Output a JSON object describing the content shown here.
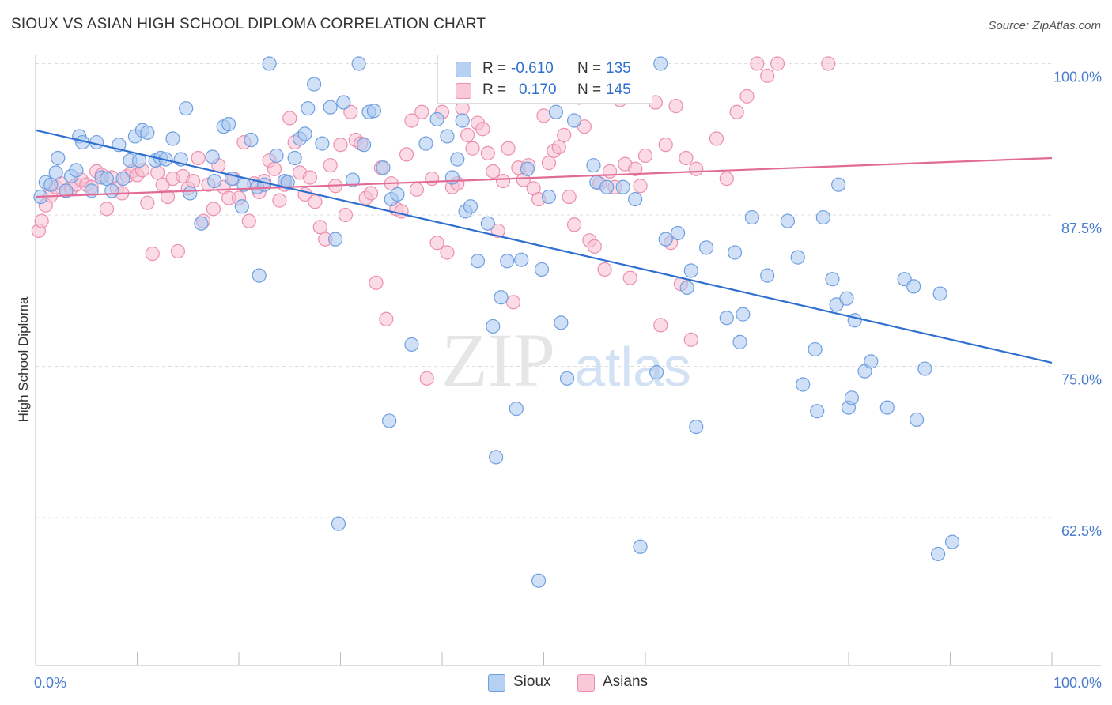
{
  "title": "SIOUX VS ASIAN HIGH SCHOOL DIPLOMA CORRELATION CHART",
  "source": "Source: ZipAtlas.com",
  "watermark": {
    "zip": "ZIP",
    "atlas": "atlas"
  },
  "legend": {
    "r_label": "R =",
    "n_label": "N =",
    "sioux": {
      "r": "-0.610",
      "n": "135"
    },
    "asians": {
      "r": "0.170",
      "n": "145"
    }
  },
  "colors": {
    "sioux_fill": "#a9c8f0",
    "sioux_stroke": "#6f9fe0",
    "sioux_line": "#2f6fcf",
    "asians_fill": "#f7c0d2",
    "asians_stroke": "#ec8fae",
    "asians_line": "#e26b96",
    "tick_text": "#4a7ccc",
    "grid": "#dddddd"
  },
  "chart_data": {
    "type": "scatter",
    "title": "SIOUX VS ASIAN HIGH SCHOOL DIPLOMA CORRELATION CHART",
    "xlabel": "",
    "ylabel": "High School Diploma",
    "xlim": [
      0,
      100
    ],
    "ylim": [
      51.5,
      101.2
    ],
    "x_tick_labels": [
      "0.0%",
      "100.0%"
    ],
    "y_ticks": [
      62.5,
      75.0,
      87.5,
      100.0
    ],
    "y_tick_labels": [
      "62.5%",
      "75.0%",
      "87.5%",
      "100.0%"
    ],
    "grid": true,
    "legend_position": "bottom",
    "series": [
      {
        "name": "Sioux",
        "trend": {
          "x": [
            0,
            100
          ],
          "y": [
            94.5,
            75.3
          ]
        },
        "points": [
          [
            0.5,
            89
          ],
          [
            1,
            90.2
          ],
          [
            1.5,
            90
          ],
          [
            2,
            91
          ],
          [
            2.2,
            92.2
          ],
          [
            3,
            89.5
          ],
          [
            3.5,
            90.7
          ],
          [
            4,
            91.2
          ],
          [
            4.3,
            94
          ],
          [
            4.6,
            93.5
          ],
          [
            5.5,
            89.5
          ],
          [
            6,
            93.5
          ],
          [
            6.5,
            90.6
          ],
          [
            7,
            90.5
          ],
          [
            7.5,
            89.5
          ],
          [
            8.2,
            93.3
          ],
          [
            8.6,
            90.5
          ],
          [
            9.3,
            92
          ],
          [
            9.8,
            94
          ],
          [
            10.2,
            92
          ],
          [
            10.5,
            94.5
          ],
          [
            11,
            94.3
          ],
          [
            11.8,
            92
          ],
          [
            12.3,
            92.2
          ],
          [
            12.8,
            92.1
          ],
          [
            13.5,
            93.8
          ],
          [
            14.3,
            92.1
          ],
          [
            14.8,
            96.3
          ],
          [
            15.2,
            89.3
          ],
          [
            16.3,
            86.8
          ],
          [
            17.4,
            92.3
          ],
          [
            17.6,
            90.3
          ],
          [
            18.5,
            94.8
          ],
          [
            19,
            95
          ],
          [
            19.3,
            90.5
          ],
          [
            20.3,
            88.2
          ],
          [
            20.5,
            90
          ],
          [
            21.2,
            93.7
          ],
          [
            21.8,
            89.8
          ],
          [
            22,
            82.5
          ],
          [
            22.5,
            90
          ],
          [
            23,
            100
          ],
          [
            23.7,
            92.4
          ],
          [
            24.5,
            90.3
          ],
          [
            24.8,
            90.2
          ],
          [
            25.5,
            92.2
          ],
          [
            26,
            93.8
          ],
          [
            26.5,
            94.2
          ],
          [
            26.8,
            96.3
          ],
          [
            27.4,
            98.3
          ],
          [
            28.2,
            93.4
          ],
          [
            29,
            96.4
          ],
          [
            29.5,
            85.5
          ],
          [
            29.8,
            62
          ],
          [
            30.3,
            96.8
          ],
          [
            31.2,
            90.4
          ],
          [
            31.8,
            100
          ],
          [
            32.3,
            93.3
          ],
          [
            32.8,
            96
          ],
          [
            33.3,
            96.1
          ],
          [
            34.2,
            91.4
          ],
          [
            34.8,
            70.5
          ],
          [
            35,
            88.8
          ],
          [
            35.6,
            89.2
          ],
          [
            37,
            76.8
          ],
          [
            38.4,
            93.4
          ],
          [
            39.5,
            95.4
          ],
          [
            40.5,
            94
          ],
          [
            41,
            90.6
          ],
          [
            41.5,
            92.1
          ],
          [
            42,
            95.3
          ],
          [
            42.3,
            87.8
          ],
          [
            42.8,
            88.2
          ],
          [
            43.5,
            83.7
          ],
          [
            44.5,
            86.8
          ],
          [
            45,
            78.3
          ],
          [
            45.3,
            67.5
          ],
          [
            45.8,
            80.7
          ],
          [
            46.4,
            83.7
          ],
          [
            47.3,
            71.5
          ],
          [
            47.8,
            83.8
          ],
          [
            48.4,
            91.3
          ],
          [
            49.5,
            57.3
          ],
          [
            49.8,
            83
          ],
          [
            50.5,
            89
          ],
          [
            51.2,
            96
          ],
          [
            51.7,
            78.6
          ],
          [
            52.3,
            74
          ],
          [
            53,
            95.3
          ],
          [
            54.9,
            91.6
          ],
          [
            55.2,
            90.2
          ],
          [
            56.2,
            89.8
          ],
          [
            57.8,
            89.8
          ],
          [
            59,
            88.8
          ],
          [
            59.5,
            60.1
          ],
          [
            61.1,
            74.5
          ],
          [
            61.5,
            100
          ],
          [
            62,
            85.5
          ],
          [
            63.2,
            86
          ],
          [
            64.1,
            81.5
          ],
          [
            64.5,
            82.9
          ],
          [
            65,
            70
          ],
          [
            66,
            84.8
          ],
          [
            68,
            79
          ],
          [
            68.8,
            84.4
          ],
          [
            69.3,
            77
          ],
          [
            69.6,
            79.3
          ],
          [
            70.5,
            87.3
          ],
          [
            72,
            82.5
          ],
          [
            74,
            87
          ],
          [
            75,
            84
          ],
          [
            75.5,
            73.5
          ],
          [
            76.7,
            76.4
          ],
          [
            76.9,
            71.3
          ],
          [
            77.5,
            87.3
          ],
          [
            78.4,
            82.2
          ],
          [
            78.8,
            80.1
          ],
          [
            79,
            90
          ],
          [
            79.8,
            80.6
          ],
          [
            80,
            71.6
          ],
          [
            80.3,
            72.4
          ],
          [
            80.6,
            78.8
          ],
          [
            81.6,
            74.6
          ],
          [
            82.2,
            75.4
          ],
          [
            83.8,
            71.6
          ],
          [
            85.5,
            82.2
          ],
          [
            86.4,
            81.6
          ],
          [
            86.7,
            70.6
          ],
          [
            87.5,
            74.8
          ],
          [
            88.8,
            59.5
          ],
          [
            89,
            81
          ],
          [
            90.2,
            60.5
          ]
        ]
      },
      {
        "name": "Asians",
        "trend": {
          "x": [
            0,
            100
          ],
          "y": [
            89,
            92.2
          ]
        },
        "points": [
          [
            0.3,
            86.2
          ],
          [
            0.6,
            87
          ],
          [
            1,
            88.3
          ],
          [
            1.5,
            89.1
          ],
          [
            2,
            89.8
          ],
          [
            2.5,
            90.1
          ],
          [
            3,
            89.5
          ],
          [
            3.5,
            89.7
          ],
          [
            4,
            90
          ],
          [
            4.5,
            90.4
          ],
          [
            5,
            90
          ],
          [
            5.5,
            89.8
          ],
          [
            6,
            91.1
          ],
          [
            6.5,
            90.8
          ],
          [
            7,
            88
          ],
          [
            7.5,
            90.6
          ],
          [
            8,
            89.7
          ],
          [
            8.5,
            89.3
          ],
          [
            9,
            90.7
          ],
          [
            9.5,
            91.1
          ],
          [
            10,
            90.8
          ],
          [
            10.5,
            91.2
          ],
          [
            11,
            88.5
          ],
          [
            11.5,
            84.3
          ],
          [
            12,
            91
          ],
          [
            12.5,
            90
          ],
          [
            13,
            89
          ],
          [
            13.5,
            90.5
          ],
          [
            14,
            84.5
          ],
          [
            14.5,
            90.7
          ],
          [
            15,
            89.7
          ],
          [
            15.5,
            90.3
          ],
          [
            16,
            92.2
          ],
          [
            16.5,
            87
          ],
          [
            17,
            90
          ],
          [
            17.5,
            88
          ],
          [
            18,
            91.6
          ],
          [
            18.5,
            89.8
          ],
          [
            19,
            88.9
          ],
          [
            19.5,
            90.5
          ],
          [
            20,
            88.9
          ],
          [
            20.5,
            93.5
          ],
          [
            21,
            87
          ],
          [
            21.5,
            90.1
          ],
          [
            22,
            89.4
          ],
          [
            22.5,
            90.3
          ],
          [
            23,
            92
          ],
          [
            23.5,
            91.3
          ],
          [
            24,
            88.7
          ],
          [
            24.5,
            90
          ],
          [
            25,
            95.5
          ],
          [
            25.5,
            93.5
          ],
          [
            26,
            91
          ],
          [
            26.5,
            89.2
          ],
          [
            27,
            90.6
          ],
          [
            27.5,
            88.6
          ],
          [
            28,
            86.5
          ],
          [
            28.5,
            85.5
          ],
          [
            29,
            91.6
          ],
          [
            29.5,
            89.9
          ],
          [
            30,
            93.3
          ],
          [
            30.5,
            87.5
          ],
          [
            31,
            96
          ],
          [
            31.5,
            93.7
          ],
          [
            32,
            93.4
          ],
          [
            32.5,
            88.9
          ],
          [
            33,
            89.3
          ],
          [
            33.5,
            81.9
          ],
          [
            34,
            91.4
          ],
          [
            34.5,
            78.9
          ],
          [
            35,
            90.1
          ],
          [
            35.5,
            88
          ],
          [
            36,
            87.8
          ],
          [
            36.5,
            92.5
          ],
          [
            37,
            95.3
          ],
          [
            37.5,
            89.6
          ],
          [
            38,
            96
          ],
          [
            38.5,
            74
          ],
          [
            39,
            90.5
          ],
          [
            39.5,
            85.2
          ],
          [
            40,
            96
          ],
          [
            40.5,
            84.4
          ],
          [
            41,
            89.8
          ],
          [
            41.5,
            90.1
          ],
          [
            42,
            96.3
          ],
          [
            42.5,
            94.1
          ],
          [
            43,
            93
          ],
          [
            43.5,
            95.1
          ],
          [
            44,
            94.6
          ],
          [
            44.5,
            92.6
          ],
          [
            45,
            91.1
          ],
          [
            45.5,
            86.2
          ],
          [
            46,
            90.3
          ],
          [
            46.5,
            93
          ],
          [
            47,
            80.3
          ],
          [
            47.5,
            91.4
          ],
          [
            48,
            90.4
          ],
          [
            48.5,
            91.6
          ],
          [
            49,
            89.7
          ],
          [
            49.5,
            88.8
          ],
          [
            50,
            95.7
          ],
          [
            50.5,
            91.8
          ],
          [
            51,
            92.8
          ],
          [
            51.5,
            93.1
          ],
          [
            52,
            94.1
          ],
          [
            52.5,
            89
          ],
          [
            53,
            86.7
          ],
          [
            53.5,
            97.2
          ],
          [
            54,
            94.8
          ],
          [
            54.5,
            85.4
          ],
          [
            55,
            84.9
          ],
          [
            55.5,
            90.1
          ],
          [
            56,
            83
          ],
          [
            56.5,
            91.1
          ],
          [
            57,
            89.8
          ],
          [
            57.5,
            97
          ],
          [
            58,
            91.7
          ],
          [
            58.5,
            82.3
          ],
          [
            59,
            91.3
          ],
          [
            59.5,
            89.9
          ],
          [
            60,
            92.4
          ],
          [
            61,
            96.8
          ],
          [
            61.5,
            78.4
          ],
          [
            62,
            93.3
          ],
          [
            62.5,
            85.2
          ],
          [
            63,
            96.5
          ],
          [
            63.5,
            81.8
          ],
          [
            64,
            92.2
          ],
          [
            64.5,
            77.2
          ],
          [
            65,
            91.3
          ],
          [
            67,
            93.8
          ],
          [
            68,
            90.5
          ],
          [
            69,
            96
          ],
          [
            70,
            97.3
          ],
          [
            71,
            100
          ],
          [
            72,
            99
          ],
          [
            73,
            100
          ],
          [
            78,
            100
          ]
        ]
      }
    ]
  }
}
